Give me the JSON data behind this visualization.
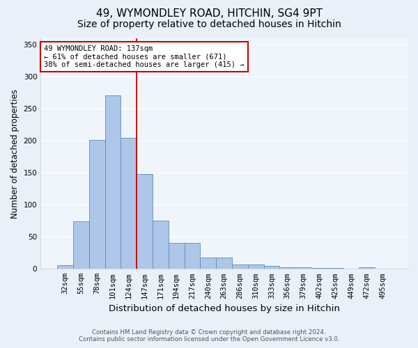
{
  "title_line1": "49, WYMONDLEY ROAD, HITCHIN, SG4 9PT",
  "title_line2": "Size of property relative to detached houses in Hitchin",
  "xlabel": "Distribution of detached houses by size in Hitchin",
  "ylabel": "Number of detached properties",
  "categories": [
    "32sqm",
    "55sqm",
    "78sqm",
    "101sqm",
    "124sqm",
    "147sqm",
    "171sqm",
    "194sqm",
    "217sqm",
    "240sqm",
    "263sqm",
    "286sqm",
    "310sqm",
    "333sqm",
    "356sqm",
    "379sqm",
    "402sqm",
    "425sqm",
    "449sqm",
    "472sqm",
    "495sqm"
  ],
  "bar_values": [
    6,
    74,
    201,
    271,
    205,
    148,
    75,
    40,
    40,
    18,
    18,
    7,
    7,
    5,
    3,
    2,
    1,
    1,
    0,
    2,
    0
  ],
  "bar_color": "#aec6e8",
  "bar_edge_color": "#5a8fc0",
  "vline_x": 4.5,
  "vline_color": "#cc0000",
  "annotation_text": "49 WYMONDLEY ROAD: 137sqm\n← 61% of detached houses are smaller (671)\n38% of semi-detached houses are larger (415) →",
  "annotation_box_color": "#ffffff",
  "annotation_box_edge": "#cc0000",
  "ylim": [
    0,
    360
  ],
  "yticks": [
    0,
    50,
    100,
    150,
    200,
    250,
    300,
    350
  ],
  "footer_line1": "Contains HM Land Registry data © Crown copyright and database right 2024.",
  "footer_line2": "Contains public sector information licensed under the Open Government Licence v3.0.",
  "bg_color": "#eaf0f8",
  "plot_bg_color": "#f0f5fb",
  "grid_color": "#ffffff",
  "title_fontsize": 11,
  "subtitle_fontsize": 10,
  "tick_fontsize": 7.5,
  "ylabel_fontsize": 8.5,
  "xlabel_fontsize": 9.5
}
